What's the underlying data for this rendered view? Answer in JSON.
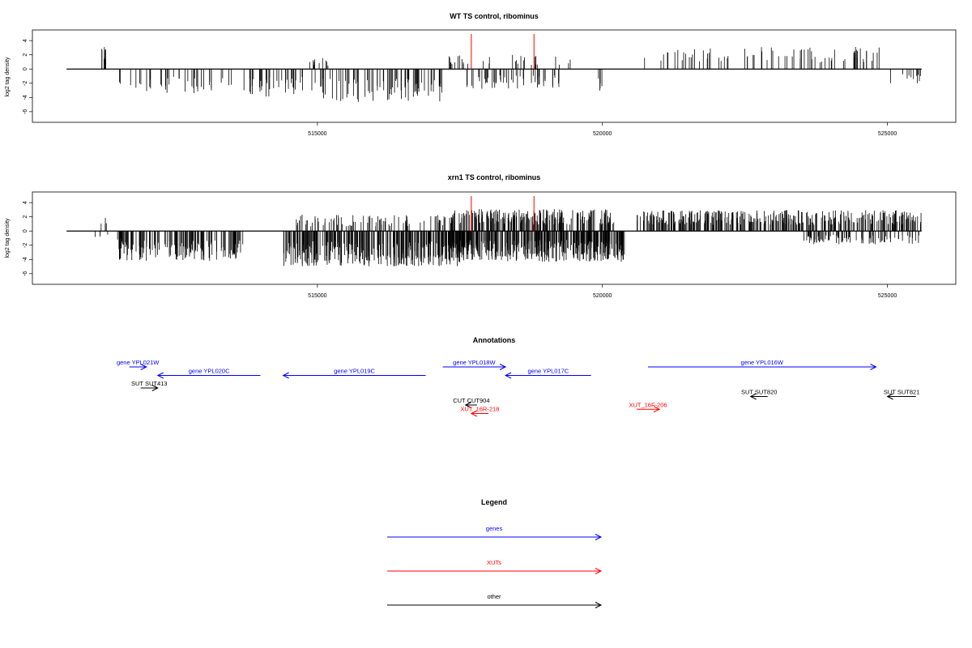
{
  "colors": {
    "gene": "#0000ff",
    "xut": "#ff0000",
    "other": "#000000",
    "marker": "#ff0000",
    "signal": "#000000"
  },
  "chart_data": [
    {
      "type": "bar",
      "title": "WT TS control, ribominus",
      "ylabel": "log2 tag density",
      "xlim": [
        510000,
        526200
      ],
      "ylim": [
        -7.5,
        5.5
      ],
      "xticks": [
        515000,
        520000,
        525000
      ],
      "xtick_labels": [
        "515000",
        "520000",
        "525000"
      ],
      "yticks": [
        -6,
        -4,
        -2,
        0,
        2,
        4
      ],
      "ytick_labels": [
        "-6",
        "-4",
        "-2",
        "0",
        "2",
        "4"
      ],
      "baseline_range": [
        510600,
        525600
      ],
      "markers_x": [
        517700,
        518800
      ],
      "segments": [
        {
          "from": 511200,
          "to": 511300,
          "density": 0.1,
          "mean": 2.0
        },
        {
          "from": 511500,
          "to": 513500,
          "density": 0.02,
          "mean": -2.2
        },
        {
          "from": 513700,
          "to": 515000,
          "density": 0.03,
          "mean": -2.5
        },
        {
          "from": 514800,
          "to": 515300,
          "density": 0.02,
          "mean": 1.0
        },
        {
          "from": 515000,
          "to": 517200,
          "density": 0.035,
          "mean": -3.0
        },
        {
          "from": 517300,
          "to": 517700,
          "density": 0.03,
          "mean": 1.3
        },
        {
          "from": 517600,
          "to": 519300,
          "density": 0.03,
          "mean": -1.8
        },
        {
          "from": 517900,
          "to": 519500,
          "density": 0.012,
          "mean": 1.3
        },
        {
          "from": 519900,
          "to": 520000,
          "density": 0.05,
          "mean": -2.0
        },
        {
          "from": 520700,
          "to": 524900,
          "density": 0.018,
          "mean": 2.0
        },
        {
          "from": 524900,
          "to": 525600,
          "density": 0.015,
          "mean": -1.3
        }
      ]
    },
    {
      "type": "bar",
      "title": "xrn1 TS control, ribominus",
      "ylabel": "log2 tag density",
      "xlim": [
        510000,
        526200
      ],
      "ylim": [
        -7.5,
        5.5
      ],
      "xticks": [
        515000,
        520000,
        525000
      ],
      "xtick_labels": [
        "515000",
        "520000",
        "525000"
      ],
      "yticks": [
        -6,
        -4,
        -2,
        0,
        2,
        4
      ],
      "ytick_labels": [
        "-6",
        "-4",
        "-2",
        "0",
        "2",
        "4"
      ],
      "baseline_range": [
        510600,
        525600
      ],
      "markers_x": [
        517700,
        518800
      ],
      "segments": [
        {
          "from": 511100,
          "to": 511900,
          "density": 0.008,
          "mean": -0.8
        },
        {
          "from": 511200,
          "to": 511400,
          "density": 0.02,
          "mean": 1.5
        },
        {
          "from": 511500,
          "to": 513700,
          "density": 0.07,
          "mean": -2.7
        },
        {
          "from": 514400,
          "to": 517500,
          "density": 0.1,
          "mean": -3.2
        },
        {
          "from": 514600,
          "to": 517300,
          "density": 0.03,
          "mean": 1.5
        },
        {
          "from": 517300,
          "to": 520400,
          "density": 0.12,
          "mean": -2.8
        },
        {
          "from": 517300,
          "to": 520200,
          "density": 0.08,
          "mean": 2.0
        },
        {
          "from": 520600,
          "to": 525600,
          "density": 0.07,
          "mean": 1.9
        },
        {
          "from": 523500,
          "to": 525600,
          "density": 0.04,
          "mean": -1.2
        }
      ]
    }
  ],
  "annotations": {
    "title": "Annotations",
    "features": [
      {
        "label": "gene YPL021W",
        "kind": "gene",
        "start": 511700,
        "end": 512000,
        "strand": "+",
        "row": 0
      },
      {
        "label": "gene YPL020C",
        "kind": "gene",
        "start": 512200,
        "end": 514000,
        "strand": "-",
        "row": 1
      },
      {
        "label": "gene YPL019C",
        "kind": "gene",
        "start": 514400,
        "end": 516900,
        "strand": "-",
        "row": 1
      },
      {
        "label": "gene YPL018W",
        "kind": "gene",
        "start": 517200,
        "end": 518300,
        "strand": "+",
        "row": 0
      },
      {
        "label": "gene YPL017C",
        "kind": "gene",
        "start": 518300,
        "end": 519800,
        "strand": "-",
        "row": 1
      },
      {
        "label": "gene YPL016W",
        "kind": "gene",
        "start": 520800,
        "end": 524800,
        "strand": "+",
        "row": 0
      },
      {
        "label": "SUT SUT413",
        "kind": "other",
        "start": 511900,
        "end": 512200,
        "strand": "+",
        "row": 2
      },
      {
        "label": "SUT SUT820",
        "kind": "other",
        "start": 522600,
        "end": 522900,
        "strand": "-",
        "row": 3
      },
      {
        "label": "SUT SUT821",
        "kind": "other",
        "start": 525000,
        "end": 525500,
        "strand": "-",
        "row": 3
      },
      {
        "label": "CUT CUT904",
        "kind": "other",
        "start": 517600,
        "end": 517800,
        "strand": "-",
        "row": 4
      },
      {
        "label": "XUT_16R-218",
        "kind": "xut",
        "start": 517700,
        "end": 518000,
        "strand": "-",
        "row": 5
      },
      {
        "label": "XUT_16F-206",
        "kind": "xut",
        "start": 520600,
        "end": 521000,
        "strand": "+",
        "row": 4.5
      }
    ]
  },
  "legend": {
    "title": "Legend",
    "items": [
      {
        "label": "genes",
        "kind": "gene"
      },
      {
        "label": "XUTs",
        "kind": "xut"
      },
      {
        "label": "other",
        "kind": "other"
      }
    ]
  }
}
